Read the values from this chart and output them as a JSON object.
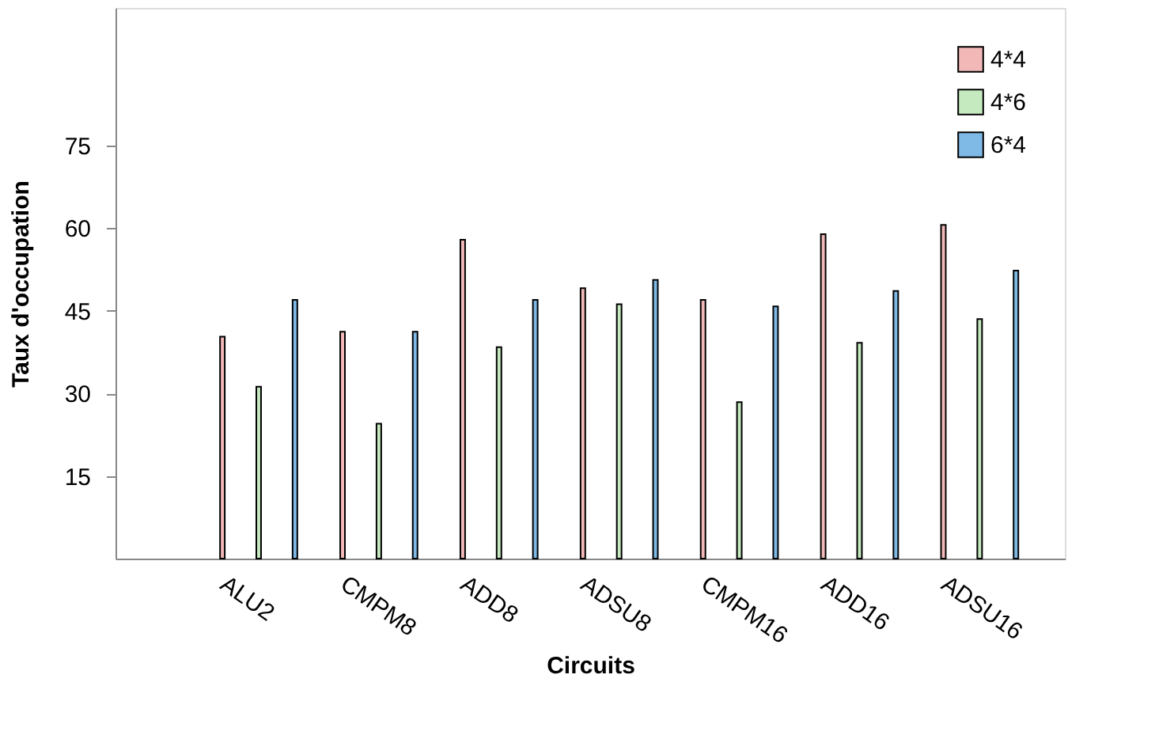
{
  "chart_data": {
    "type": "bar",
    "xlabel": "Circuits",
    "ylabel": "Taux d'occupation",
    "categories": [
      "ALU2",
      "CMPM8",
      "ADD8",
      "ADSU8",
      "CMPM16",
      "ADD16",
      "ADSU16"
    ],
    "series": [
      {
        "name": "4*4",
        "color": "#f2b8b8",
        "values": [
          40.3,
          41.2,
          57.9,
          49.1,
          47,
          58.9,
          60.6
        ]
      },
      {
        "name": "4*6",
        "color": "#c6eabf",
        "values": [
          31.2,
          24.5,
          38.4,
          46.2,
          28.4,
          39.2,
          43.5
        ]
      },
      {
        "name": "6*4",
        "color": "#7fb9e6",
        "values": [
          47,
          41.2,
          47,
          50.6,
          45.8,
          48.6,
          52.3
        ]
      }
    ],
    "ylim": [
      0,
      100
    ],
    "yticks": [
      15,
      30,
      45,
      60,
      75
    ],
    "grid": false,
    "legend": "top right"
  }
}
